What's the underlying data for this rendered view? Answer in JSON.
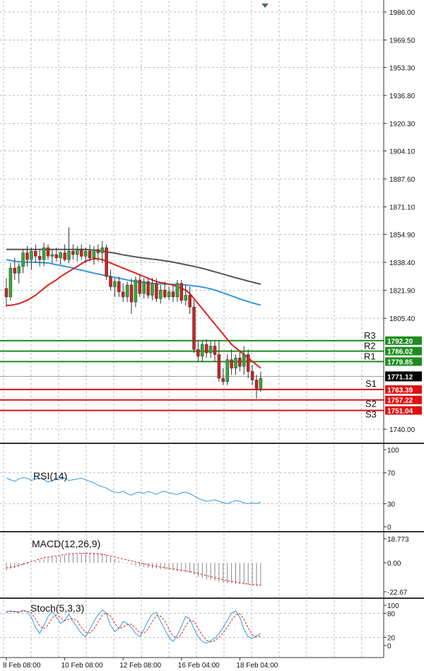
{
  "chart_data": [
    {
      "type": "candlestick",
      "name": "price",
      "y_ticks": [
        {
          "label": "1986.00",
          "value": 1986.0
        },
        {
          "label": "1969.50",
          "value": 1969.5
        },
        {
          "label": "1953.30",
          "value": 1953.3
        },
        {
          "label": "1936.80",
          "value": 1936.8
        },
        {
          "label": "1920.30",
          "value": 1920.3
        },
        {
          "label": "1904.10",
          "value": 1904.1
        },
        {
          "label": "1887.60",
          "value": 1887.6
        },
        {
          "label": "1871.10",
          "value": 1871.1
        },
        {
          "label": "1854.90",
          "value": 1854.9
        },
        {
          "label": "1838.40",
          "value": 1838.4
        },
        {
          "label": "1821.90",
          "value": 1821.9
        },
        {
          "label": "1805.40",
          "value": 1805.4
        },
        {
          "label": "1740.00",
          "value": 1740.0
        }
      ],
      "x_ticks": [
        "8 Feb 08:00",
        "10 Feb 08:00",
        "12 Feb 08:00",
        "16 Feb 04:00",
        "18 Feb 04:00"
      ],
      "x_tick_index": [
        0,
        14,
        28,
        42,
        56
      ],
      "grid": true,
      "current_price": {
        "label": "1771.12",
        "value": 1771.12,
        "color": "#000000"
      },
      "levels": [
        {
          "name": "R3",
          "label": "1792.20",
          "value": 1792.2,
          "color": "#1e8c1e"
        },
        {
          "name": "R2",
          "label": "1786.02",
          "value": 1786.02,
          "color": "#1e8c1e"
        },
        {
          "name": "R1",
          "label": "1779.85",
          "value": 1779.85,
          "color": "#1e8c1e"
        },
        {
          "name": "S1",
          "label": "1763.39",
          "value": 1763.39,
          "color": "#dd1111"
        },
        {
          "name": "S2",
          "label": "1757.22",
          "value": 1757.22,
          "color": "#dd1111"
        },
        {
          "name": "S3",
          "label": "1751.04",
          "value": 1751.04,
          "color": "#dd1111"
        }
      ],
      "candles": [
        [
          1823,
          1829,
          1812,
          1818
        ],
        [
          1818,
          1838,
          1816,
          1835
        ],
        [
          1835,
          1841,
          1828,
          1832
        ],
        [
          1832,
          1838,
          1826,
          1836
        ],
        [
          1836,
          1846,
          1832,
          1844
        ],
        [
          1844,
          1848,
          1836,
          1840
        ],
        [
          1840,
          1847,
          1834,
          1845
        ],
        [
          1845,
          1849,
          1838,
          1842
        ],
        [
          1842,
          1846,
          1836,
          1840
        ],
        [
          1840,
          1850,
          1836,
          1847
        ],
        [
          1847,
          1849,
          1840,
          1842
        ],
        [
          1842,
          1846,
          1838,
          1843
        ],
        [
          1843,
          1847,
          1839,
          1841
        ],
        [
          1841,
          1845,
          1837,
          1844
        ],
        [
          1844,
          1849,
          1839,
          1840
        ],
        [
          1840,
          1859,
          1838,
          1845
        ],
        [
          1845,
          1849,
          1840,
          1843
        ],
        [
          1843,
          1848,
          1839,
          1846
        ],
        [
          1846,
          1849,
          1840,
          1842
        ],
        [
          1842,
          1847,
          1838,
          1845
        ],
        [
          1845,
          1849,
          1839,
          1841
        ],
        [
          1841,
          1848,
          1837,
          1846
        ],
        [
          1846,
          1849,
          1839,
          1844
        ],
        [
          1844,
          1851,
          1838,
          1847
        ],
        [
          1847,
          1849,
          1828,
          1830
        ],
        [
          1830,
          1834,
          1822,
          1824
        ],
        [
          1824,
          1829,
          1818,
          1827
        ],
        [
          1827,
          1830,
          1818,
          1821
        ],
        [
          1821,
          1826,
          1815,
          1818
        ],
        [
          1818,
          1827,
          1815,
          1825
        ],
        [
          1825,
          1829,
          1808,
          1815
        ],
        [
          1815,
          1830,
          1812,
          1828
        ],
        [
          1828,
          1831,
          1818,
          1820
        ],
        [
          1820,
          1829,
          1817,
          1827
        ],
        [
          1827,
          1829,
          1817,
          1819
        ],
        [
          1819,
          1829,
          1816,
          1826
        ],
        [
          1826,
          1829,
          1815,
          1817
        ],
        [
          1817,
          1825,
          1814,
          1822
        ],
        [
          1822,
          1827,
          1817,
          1818
        ],
        [
          1818,
          1824,
          1816,
          1821
        ],
        [
          1821,
          1825,
          1815,
          1818
        ],
        [
          1818,
          1828,
          1815,
          1826
        ],
        [
          1826,
          1828,
          1814,
          1816
        ],
        [
          1816,
          1825,
          1813,
          1819
        ],
        [
          1819,
          1824,
          1808,
          1812
        ],
        [
          1812,
          1816,
          1785,
          1787
        ],
        [
          1787,
          1792,
          1780,
          1783
        ],
        [
          1783,
          1792,
          1780,
          1790
        ],
        [
          1790,
          1793,
          1782,
          1785
        ],
        [
          1785,
          1792,
          1782,
          1789
        ],
        [
          1789,
          1792,
          1780,
          1784
        ],
        [
          1784,
          1792,
          1768,
          1770
        ],
        [
          1770,
          1776,
          1766,
          1768
        ],
        [
          1768,
          1784,
          1766,
          1781
        ],
        [
          1781,
          1787,
          1772,
          1776
        ],
        [
          1776,
          1784,
          1772,
          1782
        ],
        [
          1782,
          1786,
          1774,
          1777
        ],
        [
          1777,
          1789,
          1772,
          1784
        ],
        [
          1784,
          1787,
          1770,
          1774
        ],
        [
          1774,
          1778,
          1766,
          1769
        ],
        [
          1769,
          1772,
          1758,
          1764
        ],
        [
          1764,
          1774,
          1762,
          1770
        ]
      ],
      "ma_fast_red": [
        1813,
        1813,
        1813.5,
        1814,
        1815,
        1816,
        1817.5,
        1819,
        1821,
        1823,
        1825,
        1826.5,
        1828,
        1830,
        1831.5,
        1833,
        1834.5,
        1836,
        1837.5,
        1839,
        1840,
        1840.5,
        1840.5,
        1840,
        1839,
        1838,
        1837,
        1836,
        1835,
        1834,
        1833,
        1832,
        1831,
        1830,
        1829,
        1828,
        1827,
        1826.5,
        1826,
        1825.5,
        1825,
        1824,
        1823,
        1822,
        1820,
        1817,
        1814,
        1811,
        1808,
        1805,
        1802,
        1799,
        1796,
        1793,
        1790,
        1788,
        1786,
        1784,
        1782,
        1780,
        1778,
        1776
      ],
      "ma_mid_blue": [
        1840,
        1839.5,
        1839,
        1838.8,
        1838.6,
        1838.5,
        1838.5,
        1838.4,
        1838.3,
        1838.2,
        1838,
        1837.5,
        1837,
        1836.5,
        1836,
        1835.5,
        1835,
        1834.3,
        1833.8,
        1833.2,
        1832.6,
        1832,
        1831.5,
        1831,
        1830.5,
        1830,
        1829.5,
        1829,
        1828.5,
        1828,
        1827.5,
        1827,
        1826.7,
        1826.4,
        1826.2,
        1826,
        1825.8,
        1825.7,
        1825.6,
        1825.5,
        1825.4,
        1825.3,
        1825.2,
        1825,
        1824.8,
        1824.5,
        1824.2,
        1823.8,
        1823.3,
        1822.7,
        1822,
        1821.2,
        1820.4,
        1819.5,
        1818.6,
        1817.7,
        1816.8,
        1816,
        1815.2,
        1814.5,
        1813.8,
        1813.2
      ],
      "ma_slow_gray": [
        1846,
        1846,
        1846,
        1846,
        1846,
        1846,
        1846,
        1846,
        1846,
        1846,
        1846,
        1846,
        1846,
        1846,
        1846,
        1846,
        1846,
        1846,
        1846,
        1846,
        1845.8,
        1845.6,
        1845.3,
        1845,
        1844.6,
        1844.2,
        1843.8,
        1843.3,
        1842.8,
        1842.4,
        1842,
        1841.6,
        1841.2,
        1840.9,
        1840.6,
        1840.3,
        1840,
        1839.7,
        1839.3,
        1838.9,
        1838.5,
        1838,
        1837.5,
        1837,
        1836.5,
        1836,
        1835.4,
        1834.8,
        1834.2,
        1833.5,
        1832.8,
        1832.1,
        1831.4,
        1830.7,
        1830,
        1829.3,
        1828.7,
        1828,
        1827.3,
        1826.7,
        1826.1,
        1825.5
      ]
    },
    {
      "type": "line",
      "name": "RSI(14)",
      "title": "RSI(14)",
      "y_ticks": [
        100,
        70,
        30,
        0
      ],
      "ylim": [
        0,
        100
      ],
      "values": [
        63,
        61,
        59,
        62,
        64,
        63,
        60,
        62,
        63,
        61,
        58,
        60,
        61,
        62,
        63,
        60,
        61,
        62,
        63,
        61,
        59,
        57,
        54,
        52,
        50,
        47,
        45,
        44,
        46,
        43,
        41,
        44,
        45,
        43,
        46,
        44,
        42,
        45,
        46,
        44,
        43,
        42,
        44,
        45,
        43,
        40,
        37,
        35,
        33,
        34,
        35,
        33,
        31,
        30,
        32,
        34,
        33,
        31,
        30,
        31,
        30,
        32
      ],
      "color": "#3399dd"
    },
    {
      "type": "bar",
      "name": "MACD(12,26,9)",
      "title": "MACD(12,26,9)",
      "y_ticks": [
        {
          "label": "18.773",
          "value": 18.773
        },
        {
          "label": "0.00",
          "value": 0
        },
        {
          "label": "-22.67",
          "value": -22.67
        }
      ],
      "ylim": [
        -22.67,
        18.773
      ],
      "histogram": [
        -6,
        -5,
        -4,
        -3,
        -2,
        -1,
        0,
        1,
        2,
        3,
        4,
        4.5,
        5,
        5.5,
        6,
        6.5,
        7,
        7.2,
        7.5,
        7.8,
        8,
        8,
        7.8,
        7.5,
        6,
        4.5,
        3,
        1.5,
        0.5,
        -0.5,
        -1.5,
        -2.5,
        -3,
        -3.5,
        -4,
        -4.3,
        -4.6,
        -5,
        -5.3,
        -5.6,
        -6,
        -6.5,
        -7,
        -7.5,
        -8,
        -9.5,
        -11,
        -12,
        -13,
        -13.5,
        -14,
        -15,
        -15.5,
        -16,
        -16,
        -16.5,
        -16.5,
        -17,
        -17,
        -17.5,
        -18,
        -18
      ],
      "signal": [
        -4,
        -3.5,
        -3,
        -2,
        -1,
        0,
        1,
        2,
        3,
        4,
        4.5,
        5,
        5.5,
        6,
        6.5,
        7,
        7.2,
        7.4,
        7.5,
        7.5,
        7.4,
        7.2,
        7,
        6.5,
        6,
        5.3,
        4.6,
        3.8,
        3,
        2.2,
        1.5,
        0.8,
        0,
        -0.8,
        -1.5,
        -2.2,
        -2.8,
        -3.3,
        -3.8,
        -4.3,
        -4.8,
        -5.3,
        -5.8,
        -6.3,
        -6.8,
        -7.5,
        -8.3,
        -9.1,
        -10,
        -10.8,
        -11.6,
        -12.4,
        -13.2,
        -14,
        -14.6,
        -15.2,
        -15.7,
        -16.2,
        -16.6,
        -17,
        -17.3,
        -17.5
      ],
      "color_histogram": "#888888",
      "color_signal": "#dd2222"
    },
    {
      "type": "line",
      "name": "Stoch(5,3,3)",
      "title": "Stoch(5,3,3)",
      "y_ticks": [
        100,
        80,
        20,
        0
      ],
      "ylim": [
        0,
        100
      ],
      "k": [
        85,
        86,
        84,
        82,
        88,
        84,
        70,
        45,
        30,
        50,
        72,
        85,
        70,
        55,
        62,
        78,
        60,
        45,
        30,
        22,
        40,
        60,
        76,
        88,
        80,
        50,
        35,
        42,
        60,
        55,
        45,
        30,
        22,
        40,
        62,
        78,
        82,
        60,
        40,
        20,
        10,
        26,
        48,
        72,
        66,
        42,
        22,
        10,
        6,
        12,
        18,
        30,
        45,
        62,
        80,
        86,
        70,
        40,
        22,
        18,
        24,
        30
      ],
      "d": [
        82,
        84,
        85,
        84,
        85,
        86,
        81,
        66,
        48,
        42,
        51,
        69,
        76,
        70,
        62,
        65,
        67,
        61,
        45,
        32,
        31,
        41,
        59,
        75,
        81,
        73,
        55,
        42,
        46,
        52,
        53,
        43,
        32,
        31,
        41,
        60,
        74,
        73,
        61,
        40,
        23,
        19,
        28,
        49,
        62,
        60,
        43,
        25,
        13,
        9,
        12,
        20,
        31,
        46,
        62,
        76,
        79,
        65,
        44,
        27,
        21,
        24
      ],
      "color_k": "#3399dd",
      "color_d": "#dd2222"
    }
  ]
}
